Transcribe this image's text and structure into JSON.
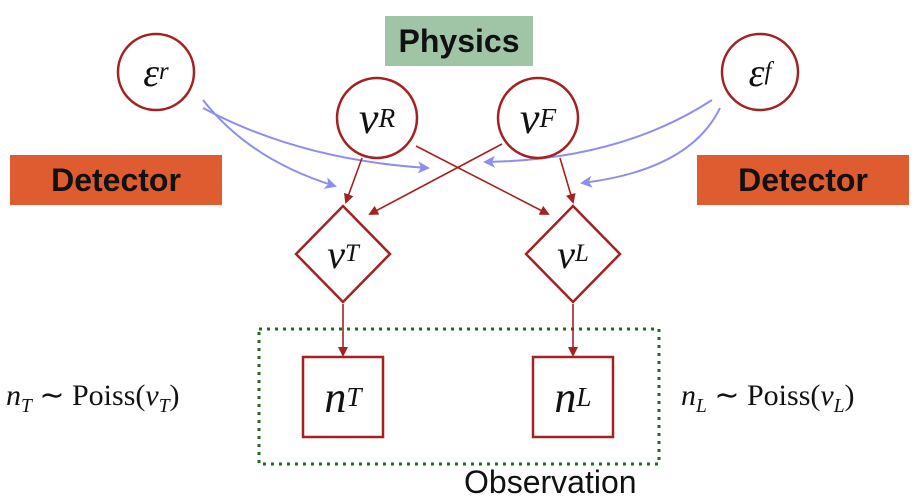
{
  "labels": {
    "physics": "Physics",
    "detector_left": "Detector",
    "detector_right": "Detector",
    "observation": "Observation"
  },
  "nodes": {
    "eps_r": {
      "base": "ε",
      "sub": "r"
    },
    "eps_f": {
      "base": "ε",
      "sub": "f"
    },
    "nu_R": {
      "base": "ν",
      "sub": "R"
    },
    "nu_F": {
      "base": "ν",
      "sub": "F"
    },
    "nu_T": {
      "base": "ν",
      "sub": "T"
    },
    "nu_L": {
      "base": "ν",
      "sub": "L"
    },
    "n_T": {
      "base": "n",
      "sub": "T"
    },
    "n_L": {
      "base": "n",
      "sub": "L"
    }
  },
  "formulas": {
    "left": {
      "var": "n",
      "sub": "T",
      "dist": "∼ Poiss(",
      "arg": "ν",
      "arg_sub": "T",
      "close": ")"
    },
    "right": {
      "var": "n",
      "sub": "L",
      "dist": "∼ Poiss(",
      "arg": "ν",
      "arg_sub": "L",
      "close": ")"
    }
  },
  "colors": {
    "physics_bg": "#9fc4a6",
    "detector_bg": "#df5b30",
    "node_border": "#a52020",
    "arrow_dark": "#a52020",
    "arrow_light": "#8e8ef0",
    "observation_border": "#1f6b1f"
  }
}
